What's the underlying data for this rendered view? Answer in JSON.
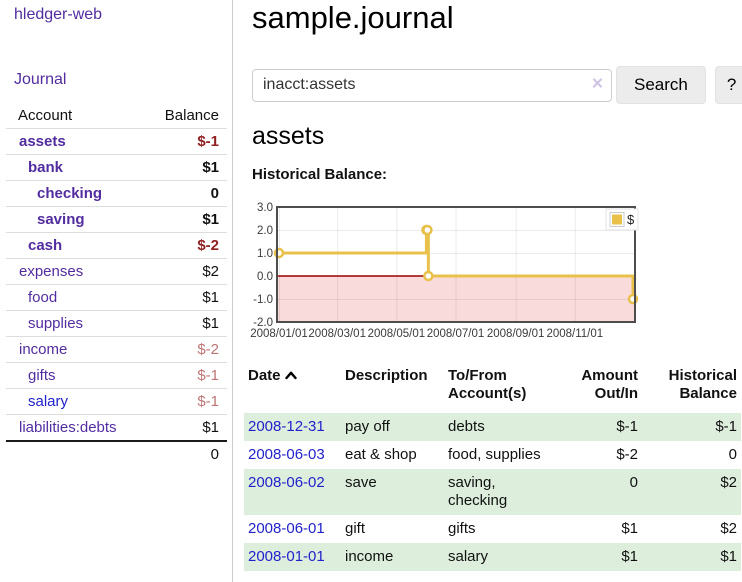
{
  "sidebar": {
    "app_title": "hledger-web",
    "nav_journal": "Journal",
    "accounts": {
      "col_account": "Account",
      "col_balance": "Balance",
      "rows": [
        {
          "name": "assets",
          "depth": 1,
          "bold": true,
          "balance": "$-1"
        },
        {
          "name": "bank",
          "depth": 2,
          "bold": true,
          "balance": "$1"
        },
        {
          "name": "checking",
          "depth": 3,
          "bold": true,
          "balance": "0"
        },
        {
          "name": "saving",
          "depth": 3,
          "bold": true,
          "balance": "$1"
        },
        {
          "name": "cash",
          "depth": 2,
          "bold": true,
          "balance": "$-2"
        },
        {
          "name": "expenses",
          "depth": 1,
          "bold": false,
          "balance": "$2"
        },
        {
          "name": "food",
          "depth": 2,
          "bold": false,
          "balance": "$1"
        },
        {
          "name": "supplies",
          "depth": 2,
          "bold": false,
          "balance": "$1"
        },
        {
          "name": "income",
          "depth": 1,
          "bold": false,
          "balance": "$-2"
        },
        {
          "name": "gifts",
          "depth": 2,
          "bold": false,
          "balance": "$-1"
        },
        {
          "name": "salary",
          "depth": 2,
          "bold": false,
          "balance": "$-1",
          "link_color": "blue"
        },
        {
          "name": "liabilities:debts",
          "depth": 1,
          "bold": false,
          "balance": "$1"
        }
      ],
      "total": "0"
    }
  },
  "header": {
    "title": "sample.journal"
  },
  "search": {
    "value": "inacct:assets",
    "clear_icon": "×",
    "search_button": "Search",
    "help_button": "?"
  },
  "account_page": {
    "heading": "assets"
  },
  "chart_data": {
    "type": "line",
    "style": "step",
    "title": "Historical Balance:",
    "series": [
      {
        "name": "$",
        "color": "#e8c04a",
        "points": [
          [
            "2008-01-01",
            1
          ],
          [
            "2008-06-01",
            2
          ],
          [
            "2008-06-02",
            2
          ],
          [
            "2008-06-03",
            0
          ],
          [
            "2008-12-31",
            -1
          ]
        ]
      }
    ],
    "x_range": [
      "2008-01-01",
      "2008-12-31"
    ],
    "y_range": [
      -2,
      3
    ],
    "x_ticks": [
      {
        "label": "2008/01/01",
        "date": "2008-01-01"
      },
      {
        "label": "2008/03/01",
        "date": "2008-03-01"
      },
      {
        "label": "2008/05/01",
        "date": "2008-05-01"
      },
      {
        "label": "2008/07/01",
        "date": "2008-07-01"
      },
      {
        "label": "2008/09/01",
        "date": "2008-09-01"
      },
      {
        "label": "2008/11/01",
        "date": "2008-11-01"
      }
    ],
    "y_ticks": [
      {
        "label": "3.0",
        "value": 3
      },
      {
        "label": "2.0",
        "value": 2
      },
      {
        "label": "1.0",
        "value": 1
      },
      {
        "label": "0.0",
        "value": 0
      },
      {
        "label": "-1.0",
        "value": -1
      },
      {
        "label": "-2.0",
        "value": -2
      }
    ],
    "legend": {
      "label": "$",
      "position": "top-right"
    },
    "grid": true,
    "colors": {
      "negative_region": "#fadbdb",
      "zero_line": "#990000",
      "grid": "#e6e6e6",
      "border": "#4d4d4d",
      "legend_box": "#cccccc"
    }
  },
  "register": {
    "headers": {
      "date": "Date",
      "description": "Description",
      "tofrom_line1": "To/From",
      "tofrom_line2": "Account(s)",
      "amount_line1": "Amount",
      "amount_line2": "Out/In",
      "balance_line1": "Historical",
      "balance_line2": "Balance"
    },
    "rows": [
      {
        "date": "2008-12-31",
        "description": "pay off",
        "accounts": "debts",
        "amount": "$-1",
        "balance": "$-1"
      },
      {
        "date": "2008-06-03",
        "description": "eat & shop",
        "accounts": "food, supplies",
        "amount": "$-2",
        "balance": "0"
      },
      {
        "date": "2008-06-02",
        "description": "save",
        "accounts": "saving, checking",
        "amount": "0",
        "balance": "$2"
      },
      {
        "date": "2008-06-01",
        "description": "gift",
        "accounts": "gifts",
        "amount": "$1",
        "balance": "$2"
      },
      {
        "date": "2008-01-01",
        "description": "income",
        "accounts": "salary",
        "amount": "$1",
        "balance": "$1"
      }
    ]
  },
  "colors": {
    "link_purple": "#522da0",
    "link_blue": "#2222cc",
    "negative_strong": "#8f2121",
    "negative_muted": "#bd7575",
    "row_stripe_green": "#ddeedd"
  }
}
